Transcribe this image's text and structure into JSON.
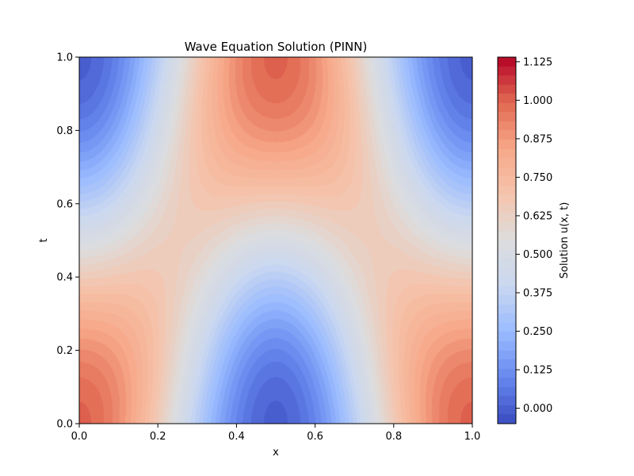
{
  "chart_data": {
    "type": "heatmap",
    "title": "Wave Equation Solution (PINN)",
    "xlabel": "x",
    "ylabel": "t",
    "xlim": [
      0.0,
      1.0
    ],
    "ylim": [
      0.0,
      1.0
    ],
    "x_ticks": [
      "0.0",
      "0.2",
      "0.4",
      "0.6",
      "0.8",
      "1.0"
    ],
    "y_ticks": [
      "0.0",
      "0.2",
      "0.4",
      "0.6",
      "0.8",
      "1.0"
    ],
    "grid": false,
    "colormap": "coolwarm",
    "colormap_stops": [
      "#3b4cc0",
      "#6788ee",
      "#9abbff",
      "#c9d7f0",
      "#dddddd",
      "#f5c4ac",
      "#f7a889",
      "#e26952",
      "#b40426"
    ],
    "function": "u(x,t) = 0.5 + 0.5*cos(2*pi*x)*cos(pi*t) + 0.14*sin(2*pi*x)^2*sin(pi*t)",
    "colorbar": {
      "label": "Solution u(x, t)",
      "range": [
        -0.05,
        1.14
      ],
      "ticks": [
        "0.000",
        "0.125",
        "0.250",
        "0.375",
        "0.500",
        "0.625",
        "0.750",
        "0.875",
        "1.000",
        "1.125"
      ],
      "tick_values": [
        0.0,
        0.125,
        0.25,
        0.375,
        0.5,
        0.625,
        0.75,
        0.875,
        1.0,
        1.125
      ]
    }
  }
}
